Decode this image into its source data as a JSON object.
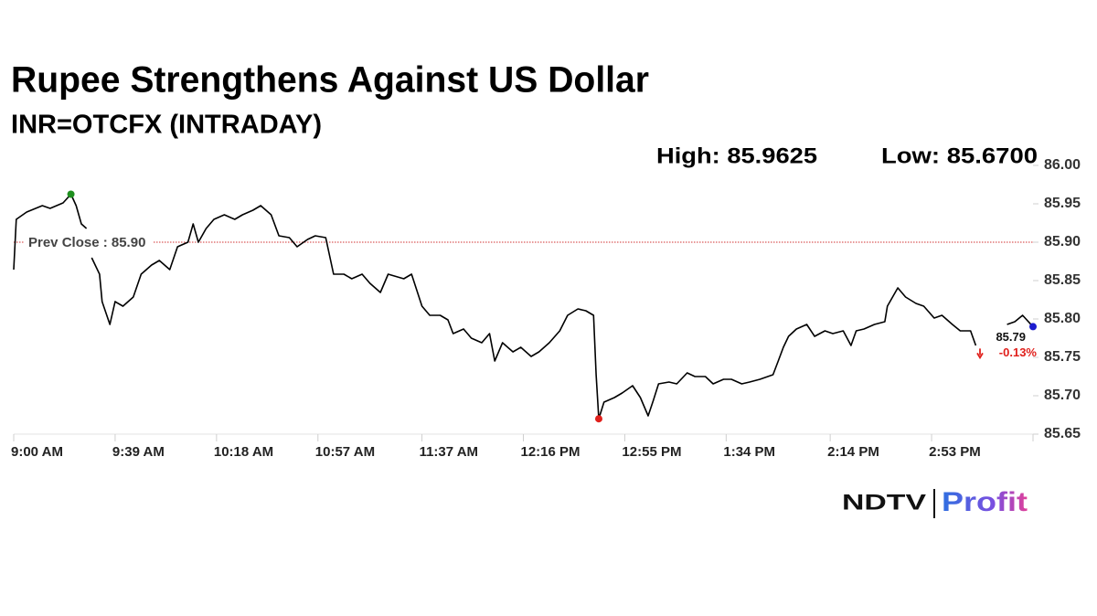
{
  "chart_data": {
    "type": "line",
    "title": "Rupee Strengthens Against US Dollar",
    "subtitle": "INR=OTCFX (INTRADAY)",
    "high_label": "High: 85.9625",
    "low_label": "Low: 85.6700",
    "x": [
      "9:00 AM",
      "9:01 AM",
      "9:05 AM",
      "9:11 AM",
      "9:14 AM",
      "9:19 AM",
      "9:22 AM",
      "9:24 AM",
      "9:26 AM",
      "9:28 AM",
      "9:29 AM",
      "9:30 AM",
      "9:33 AM",
      "9:34 AM",
      "9:37 AM",
      "9:39 AM",
      "9:42 AM",
      "9:46 AM",
      "9:49 AM",
      "9:53 AM",
      "9:56 AM",
      "10:00 AM",
      "10:03 AM",
      "10:07 AM",
      "10:09 AM",
      "10:11 AM",
      "10:14 AM",
      "10:17 AM",
      "10:21 AM",
      "10:25 AM",
      "10:28 AM",
      "10:32 AM",
      "10:35 AM",
      "10:39 AM",
      "10:42 AM",
      "10:46 AM",
      "10:49 AM",
      "10:53 AM",
      "10:56 AM",
      "11:00 AM",
      "11:03 AM",
      "11:07 AM",
      "11:10 AM",
      "11:14 AM",
      "11:17 AM",
      "11:21 AM",
      "11:24 AM",
      "11:30 AM",
      "11:33 AM",
      "11:37 AM",
      "11:40 AM",
      "11:44 AM",
      "11:47 AM",
      "11:49 AM",
      "11:53 AM",
      "11:56 AM",
      "12:00 PM",
      "12:03 PM",
      "12:05 PM",
      "12:08 PM",
      "12:12 PM",
      "12:15 PM",
      "12:19 PM",
      "12:22 PM",
      "12:26 PM",
      "12:30 PM",
      "12:33 PM",
      "12:37 PM",
      "12:40 PM",
      "12:43 PM",
      "12:44 PM",
      "12:45 PM",
      "12:47 PM",
      "12:51 PM",
      "12:54 PM",
      "12:58 PM",
      "1:01 PM",
      "1:04 PM",
      "1:06 PM",
      "1:08 PM",
      "1:12 PM",
      "1:15 PM",
      "1:19 PM",
      "1:22 PM",
      "1:26 PM",
      "1:29 PM",
      "1:33 PM",
      "1:36 PM",
      "1:40 PM",
      "1:43 PM",
      "1:47 PM",
      "1:52 PM",
      "1:54 PM",
      "1:56 PM",
      "1:58 PM",
      "2:01 PM",
      "2:05 PM",
      "2:08 PM",
      "2:12 PM",
      "2:15 PM",
      "2:19 PM",
      "2:22 PM",
      "2:24 PM",
      "2:27 PM",
      "2:31 PM",
      "2:35 PM",
      "2:36 PM",
      "2:40 PM",
      "2:43 PM",
      "2:47 PM",
      "2:50 PM",
      "2:54 PM",
      "2:57 PM",
      "3:01 PM",
      "3:04 PM",
      "3:08 PM",
      "3:10 PM",
      "3:15 PM",
      "3:22 PM",
      "3:25 PM",
      "3:28 PM",
      "3:32 PM"
    ],
    "series": [
      {
        "color": "#000000",
        "values": [
          85.8643,
          85.9298,
          85.9393,
          85.9476,
          85.944,
          85.9512,
          85.9625,
          85.9476,
          85.9238,
          85.9179,
          null,
          85.8798,
          85.8583,
          85.8226,
          85.7929,
          85.8226,
          85.8167,
          85.8286,
          85.8583,
          85.8702,
          85.8762,
          85.8643,
          85.894,
          85.9,
          85.9238,
          85.9,
          85.9179,
          85.9298,
          85.9357,
          85.9298,
          85.9357,
          85.9417,
          85.9476,
          85.9357,
          85.9083,
          85.906,
          85.894,
          85.9036,
          85.9083,
          85.906,
          85.8583,
          85.8583,
          85.8524,
          85.8583,
          85.8464,
          85.8345,
          85.8583,
          85.8524,
          85.8583,
          85.8167,
          85.8048,
          85.8048,
          85.7988,
          85.781,
          85.7869,
          85.775,
          85.769,
          85.781,
          85.7452,
          85.769,
          85.7571,
          85.7631,
          85.7512,
          85.7571,
          85.769,
          85.7845,
          85.8048,
          85.8131,
          85.8107,
          85.8048,
          85.7274,
          85.67,
          85.6917,
          85.6976,
          85.7036,
          85.7131,
          85.6976,
          85.6738,
          85.694,
          85.7155,
          85.7179,
          85.7155,
          85.7298,
          85.725,
          85.725,
          85.7155,
          85.7214,
          85.7214,
          85.7155,
          85.7179,
          85.7214,
          85.7274,
          85.7452,
          85.7631,
          85.7774,
          85.7869,
          85.7929,
          85.7774,
          85.7845,
          85.781,
          85.7845,
          85.7655,
          85.7845,
          85.7869,
          85.7929,
          85.7964,
          85.8167,
          85.8405,
          85.8286,
          85.8202,
          85.8167,
          85.8012,
          85.8048,
          85.7929,
          85.7845,
          85.7845,
          85.7655,
          null,
          85.7929,
          85.7964,
          85.8048,
          85.79
        ]
      }
    ],
    "high_color": "#1f8f1f",
    "low_color": "#e0201c",
    "last_color": "#1c1ccf",
    "prev_close": {
      "value": 85.9,
      "label": "Prev Close : 85.90"
    },
    "last_value": 85.79,
    "change": {
      "value": -0.13,
      "label": "-0.13%"
    },
    "change_color": "#e0201c",
    "xlim": [
      "9:00 AM",
      "3:32 PM"
    ],
    "xticks": [
      "9:00 AM",
      "9:39 AM",
      "10:18 AM",
      "10:57 AM",
      "11:37 AM",
      "12:16 PM",
      "12:55 PM",
      "1:34 PM",
      "2:14 PM",
      "2:53 PM"
    ],
    "ylim": [
      85.65,
      86.0
    ],
    "yticks": [
      {
        "value": 85.65,
        "label": "85.65"
      },
      {
        "value": 85.7,
        "label": "85.70"
      },
      {
        "value": 85.75,
        "label": "85.75"
      },
      {
        "value": 85.8,
        "label": "85.80"
      },
      {
        "value": 85.85,
        "label": "85.85"
      },
      {
        "value": 85.9,
        "label": "85.90"
      },
      {
        "value": 85.95,
        "label": "85.95"
      },
      {
        "value": 86.0,
        "label": "86.00"
      }
    ],
    "logo": {
      "left": "NDTV",
      "right": "Profit"
    }
  }
}
